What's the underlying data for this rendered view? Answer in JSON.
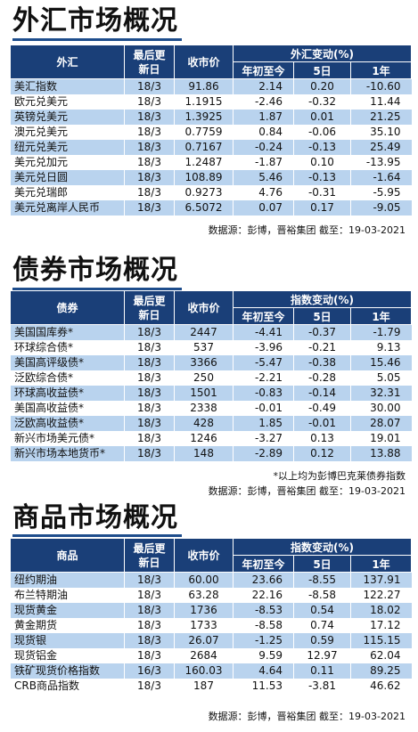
{
  "fx": {
    "title": "外汇市场概况",
    "headers": {
      "name": "外汇",
      "last_update": "最后更新日",
      "close": "收市价",
      "change_group": "外汇变动(%)",
      "ytd": "年初至今",
      "d5": "5日",
      "y1": "1年"
    },
    "rows": [
      {
        "name": "美汇指数",
        "date": "18/3",
        "close": "91.86",
        "ytd": "2.14",
        "d5": "0.20",
        "y1": "-10.60"
      },
      {
        "name": "欧元兑美元",
        "date": "18/3",
        "close": "1.1915",
        "ytd": "-2.46",
        "d5": "-0.32",
        "y1": "11.44"
      },
      {
        "name": "英镑兑美元",
        "date": "18/3",
        "close": "1.3925",
        "ytd": "1.87",
        "d5": "0.01",
        "y1": "21.25"
      },
      {
        "name": "澳元兑美元",
        "date": "18/3",
        "close": "0.7759",
        "ytd": "0.84",
        "d5": "-0.06",
        "y1": "35.10"
      },
      {
        "name": "纽元兑美元",
        "date": "18/3",
        "close": "0.7167",
        "ytd": "-0.24",
        "d5": "-0.13",
        "y1": "25.49"
      },
      {
        "name": "美元兑加元",
        "date": "18/3",
        "close": "1.2487",
        "ytd": "-1.87",
        "d5": "0.10",
        "y1": "-13.95"
      },
      {
        "name": "美元兑日圆",
        "date": "18/3",
        "close": "108.89",
        "ytd": "5.46",
        "d5": "-0.13",
        "y1": "-1.64"
      },
      {
        "name": "美元兑瑞郎",
        "date": "18/3",
        "close": "0.9273",
        "ytd": "4.76",
        "d5": "-0.31",
        "y1": "-5.95"
      },
      {
        "name": "美元兑离岸人民币",
        "date": "18/3",
        "close": "6.5072",
        "ytd": "0.07",
        "d5": "0.17",
        "y1": "-9.05"
      }
    ],
    "source": "数据源：彭博，晋裕集团 截至：19-03-2021"
  },
  "bond": {
    "title": "债券市场概况",
    "headers": {
      "name": "债券",
      "last_update": "最后更新日",
      "close": "收市价",
      "change_group": "指数变动(%)",
      "ytd": "年初至今",
      "d5": "5日",
      "y1": "1年"
    },
    "rows": [
      {
        "name": "美国国库券*",
        "date": "18/3",
        "close": "2447",
        "ytd": "-4.41",
        "d5": "-0.37",
        "y1": "-1.79"
      },
      {
        "name": "环球综合债*",
        "date": "18/3",
        "close": "537",
        "ytd": "-3.96",
        "d5": "-0.21",
        "y1": "9.13"
      },
      {
        "name": "美国高评级债*",
        "date": "18/3",
        "close": "3366",
        "ytd": "-5.47",
        "d5": "-0.38",
        "y1": "15.46"
      },
      {
        "name": "泛欧综合债*",
        "date": "18/3",
        "close": "250",
        "ytd": "-2.21",
        "d5": "-0.28",
        "y1": "5.05"
      },
      {
        "name": "环球高收益债*",
        "date": "18/3",
        "close": "1501",
        "ytd": "-0.83",
        "d5": "-0.14",
        "y1": "32.31"
      },
      {
        "name": "美国高收益债*",
        "date": "18/3",
        "close": "2338",
        "ytd": "-0.01",
        "d5": "-0.49",
        "y1": "30.00"
      },
      {
        "name": "泛欧高收益债*",
        "date": "18/3",
        "close": "428",
        "ytd": "1.85",
        "d5": "-0.01",
        "y1": "28.07"
      },
      {
        "name": "新兴市场美元债*",
        "date": "18/3",
        "close": "1246",
        "ytd": "-3.27",
        "d5": "0.13",
        "y1": "19.01"
      },
      {
        "name": "新兴市场本地货币*",
        "date": "18/3",
        "close": "148",
        "ytd": "-2.89",
        "d5": "0.12",
        "y1": "13.88"
      }
    ],
    "note": "*以上均为彭博巴克莱债券指数",
    "source": "数据源：彭博，晋裕集团 截至：19-03-2021"
  },
  "commodity": {
    "title": "商品市场概况",
    "headers": {
      "name": "商品",
      "last_update": "最后更新日",
      "close": "收市价",
      "change_group": "指数变动(%)",
      "ytd": "年初至今",
      "d5": "5日",
      "y1": "1年"
    },
    "rows": [
      {
        "name": "纽约期油",
        "date": "18/3",
        "close": "60.00",
        "ytd": "23.66",
        "d5": "-8.55",
        "y1": "137.91"
      },
      {
        "name": "布兰特期油",
        "date": "18/3",
        "close": "63.28",
        "ytd": "22.16",
        "d5": "-8.58",
        "y1": "122.27"
      },
      {
        "name": "现货黄金",
        "date": "18/3",
        "close": "1736",
        "ytd": "-8.53",
        "d5": "0.54",
        "y1": "18.02"
      },
      {
        "name": "黄金期货",
        "date": "18/3",
        "close": "1733",
        "ytd": "-8.58",
        "d5": "0.74",
        "y1": "17.12"
      },
      {
        "name": "现货银",
        "date": "18/3",
        "close": "26.07",
        "ytd": "-1.25",
        "d5": "0.59",
        "y1": "115.15"
      },
      {
        "name": "现货铝金",
        "date": "18/3",
        "close": "2684",
        "ytd": "9.59",
        "d5": "12.97",
        "y1": "62.04"
      },
      {
        "name": "铁矿现货价格指数",
        "date": "16/3",
        "close": "160.03",
        "ytd": "4.64",
        "d5": "0.11",
        "y1": "89.25"
      },
      {
        "name": "CRB商品指数",
        "date": "18/3",
        "close": "187",
        "ytd": "11.53",
        "d5": "-3.81",
        "y1": "46.62"
      }
    ],
    "source": "数据源：彭博，晋裕集团 截至：19-03-2021"
  }
}
